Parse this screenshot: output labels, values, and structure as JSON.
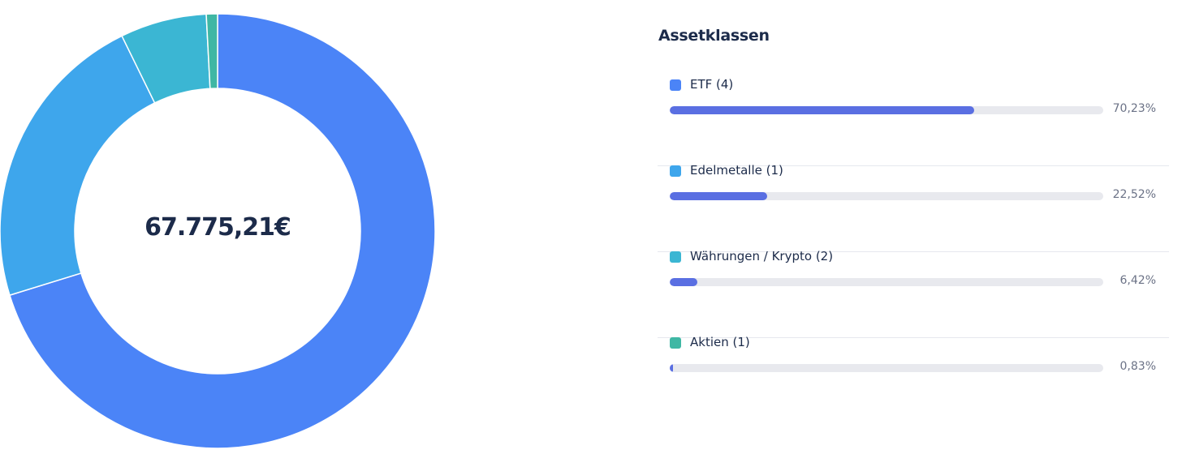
{
  "chart_data": {
    "type": "pie",
    "total_label": "67.775,21€",
    "title": "Assetklassen",
    "categories": [
      "ETF (4)",
      "Edelmetalle (1)",
      "Währungen / Krypto (2)",
      "Aktien (1)"
    ],
    "values": [
      70.23,
      22.52,
      6.42,
      0.83
    ],
    "value_labels": [
      "70,23%",
      "22,52%",
      "6,42%",
      "0,83%"
    ],
    "colors": [
      "#4b84f7",
      "#3ea6ec",
      "#3bb6d3",
      "#3fb7a4"
    ],
    "bar_color": "#5a6fe2",
    "legend_position": "right"
  }
}
